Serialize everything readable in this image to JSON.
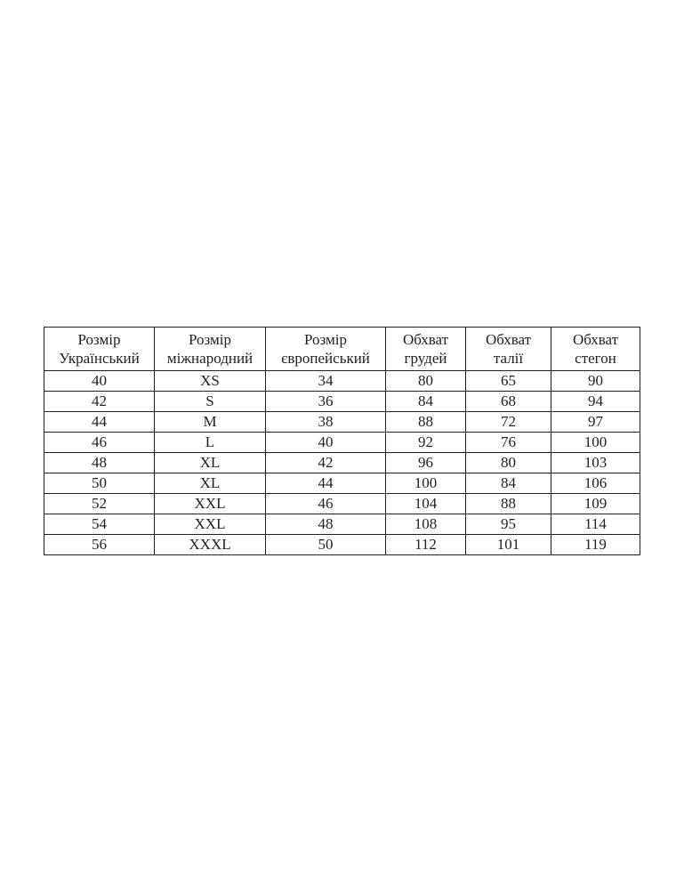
{
  "table": {
    "header": [
      [
        "Розмір",
        "Український"
      ],
      [
        "Розмір",
        "міжнародний"
      ],
      [
        "Розмір",
        "європейський"
      ],
      [
        "Обхват",
        "грудей"
      ],
      [
        "Обхват",
        "талії"
      ],
      [
        "Обхват",
        "стегон"
      ]
    ],
    "rows": [
      [
        40,
        "XS",
        34,
        80,
        65,
        90
      ],
      [
        42,
        "S",
        36,
        84,
        68,
        94
      ],
      [
        44,
        "M",
        38,
        88,
        72,
        97
      ],
      [
        46,
        "L",
        40,
        92,
        76,
        100
      ],
      [
        48,
        "XL",
        42,
        96,
        80,
        103
      ],
      [
        50,
        "XL",
        44,
        100,
        84,
        106
      ],
      [
        52,
        "XXL",
        46,
        104,
        88,
        109
      ],
      [
        54,
        "XXL",
        48,
        108,
        95,
        114
      ],
      [
        56,
        "XXXL",
        50,
        112,
        101,
        119
      ]
    ]
  }
}
